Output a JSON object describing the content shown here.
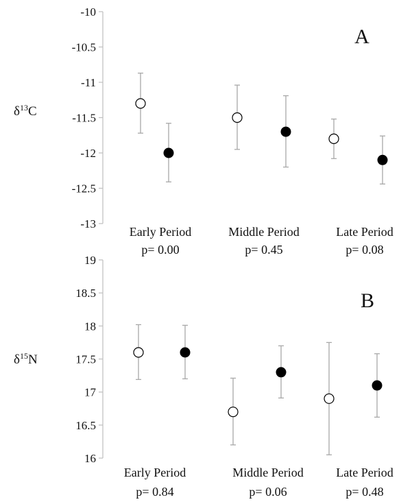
{
  "chart_data": [
    {
      "type": "scatter",
      "panel_letter": "A",
      "ylabel_base": "C",
      "ylabel_prefix": "δ",
      "ylabel_isotope": "13",
      "yticks": [
        "-10",
        "-10.5",
        "-11",
        "-11.5",
        "-12",
        "-12.5",
        "-13"
      ],
      "ylim": [
        -13,
        -10
      ],
      "categories": [
        {
          "label": "Early Period",
          "p": "p= 0.00"
        },
        {
          "label": "Middle Period",
          "p": "p= 0.45"
        },
        {
          "label": "Late Period",
          "p": "p= 0.08"
        }
      ],
      "series": [
        {
          "fill": "#ffffff",
          "values": [
            -11.3,
            -11.5,
            -11.8
          ],
          "err_low": [
            -11.72,
            -11.95,
            -12.08
          ],
          "err_high": [
            -10.87,
            -11.04,
            -11.52
          ]
        },
        {
          "fill": "#000000",
          "values": [
            -12.0,
            -11.7,
            -12.1
          ],
          "err_low": [
            -12.41,
            -12.2,
            -12.44
          ],
          "err_high": [
            -11.58,
            -11.19,
            -11.76
          ]
        }
      ],
      "grid": false
    },
    {
      "type": "scatter",
      "panel_letter": "B",
      "ylabel_base": "N",
      "ylabel_prefix": "δ",
      "ylabel_isotope": "15",
      "yticks": [
        "19",
        "18.5",
        "18",
        "17.5",
        "17",
        "16.5",
        "16"
      ],
      "ylim": [
        16,
        19
      ],
      "categories": [
        {
          "label": "Early Period",
          "p": "p= 0.84"
        },
        {
          "label": "Middle Period",
          "p": "p= 0.06"
        },
        {
          "label": "Late Period",
          "p": "p= 0.48"
        }
      ],
      "series": [
        {
          "fill": "#ffffff",
          "values": [
            17.6,
            16.7,
            16.9
          ],
          "err_low": [
            17.19,
            16.2,
            16.05
          ],
          "err_high": [
            18.02,
            17.21,
            17.75
          ]
        },
        {
          "fill": "#000000",
          "values": [
            17.6,
            17.3,
            17.1
          ],
          "err_low": [
            17.2,
            16.91,
            16.62
          ],
          "err_high": [
            18.01,
            17.7,
            17.58
          ]
        }
      ],
      "grid": false
    }
  ]
}
